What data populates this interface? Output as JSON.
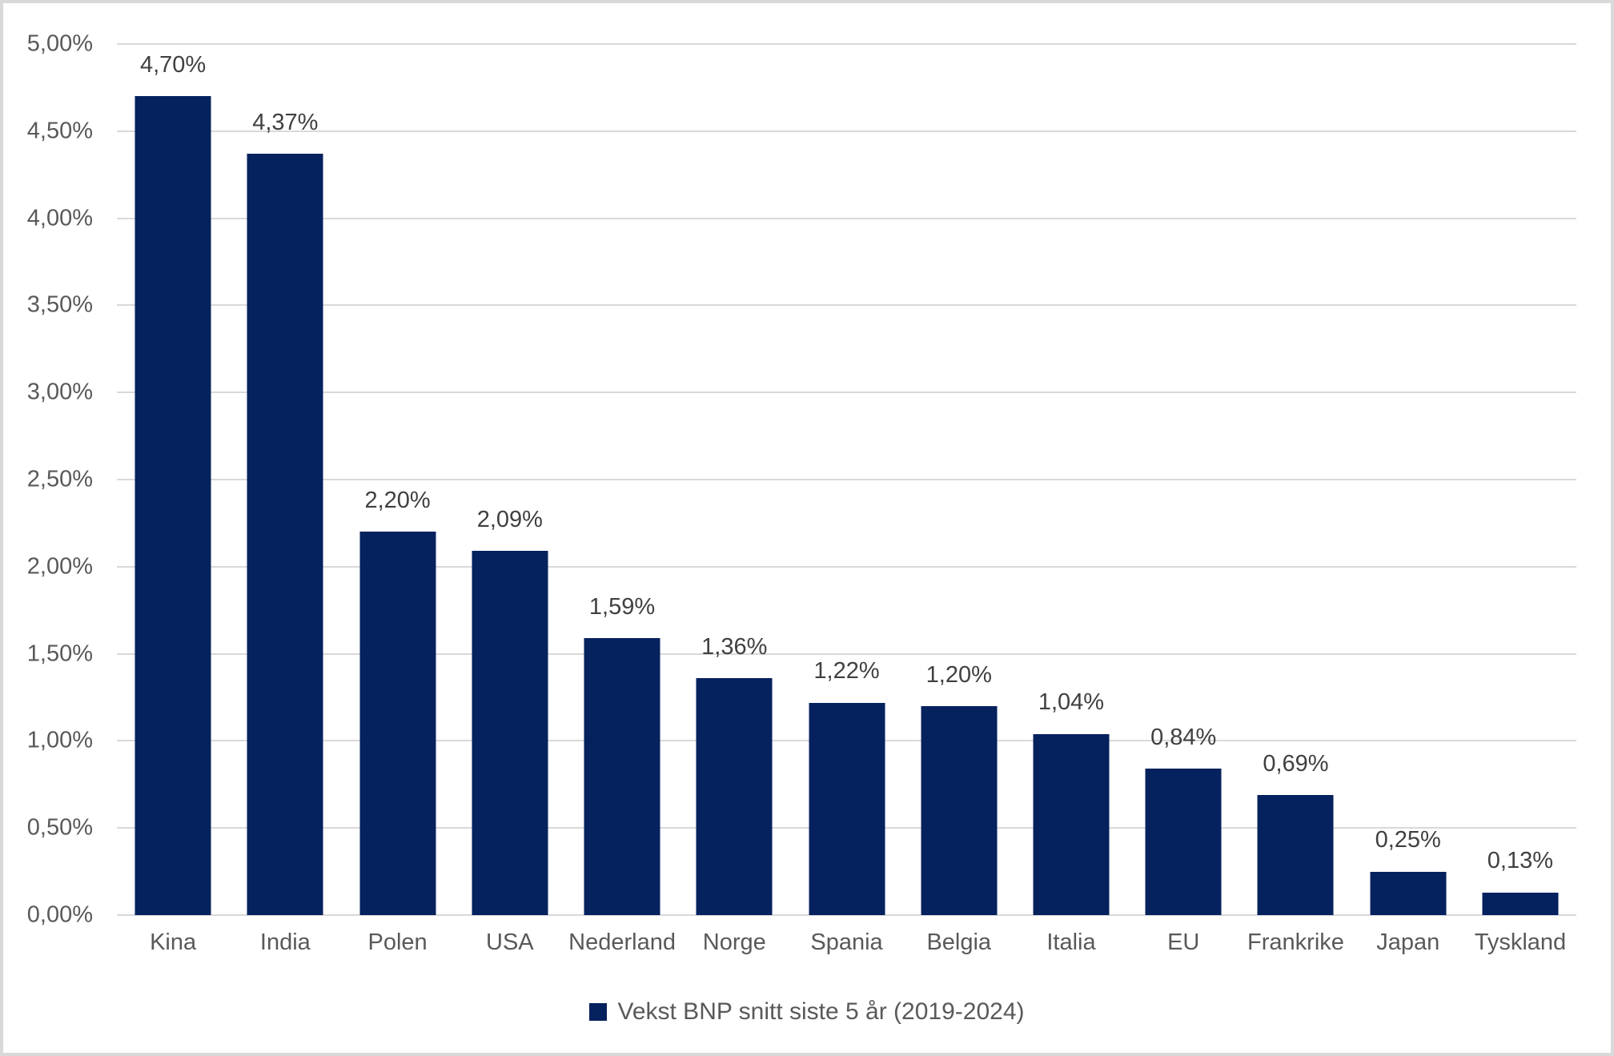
{
  "chart_data": {
    "type": "bar",
    "title": "",
    "xlabel": "",
    "ylabel": "",
    "categories": [
      "Kina",
      "India",
      "Polen",
      "USA",
      "Nederland",
      "Norge",
      "Spania",
      "Belgia",
      "Italia",
      "EU",
      "Frankrike",
      "Japan",
      "Tyskland"
    ],
    "values": [
      4.7,
      4.37,
      2.2,
      2.09,
      1.59,
      1.36,
      1.22,
      1.2,
      1.04,
      0.84,
      0.69,
      0.25,
      0.13
    ],
    "value_labels": [
      "4,70%",
      "4,37%",
      "2,20%",
      "2,09%",
      "1,59%",
      "1,36%",
      "1,22%",
      "1,20%",
      "1,04%",
      "0,84%",
      "0,69%",
      "0,25%",
      "0,13%"
    ],
    "ylim": [
      0,
      5
    ],
    "ytick_step": 0.5,
    "ytick_labels": [
      "0,00%",
      "0,50%",
      "1,00%",
      "1,50%",
      "2,00%",
      "2,50%",
      "3,00%",
      "3,50%",
      "4,00%",
      "4,50%",
      "5,00%"
    ],
    "grid": true,
    "legend_position": "bottom",
    "legend_label": "Vekst BNP snitt siste 5 år (2019-2024)",
    "colors": {
      "bar": "#05215e",
      "gridline": "#d9d9d9",
      "frame_border": "#d9d9d9",
      "axis_text": "#595959",
      "data_label_text": "#404040"
    }
  }
}
